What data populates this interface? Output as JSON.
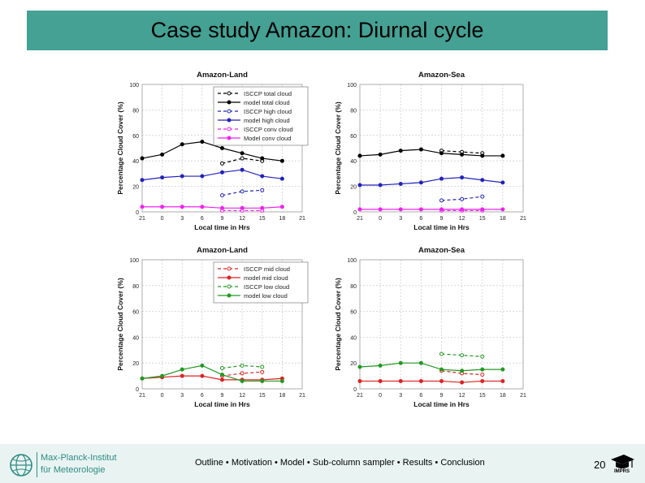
{
  "title": "Case study Amazon: Diurnal cycle",
  "footer": {
    "logo_line1": "Max-Planck-Institut",
    "logo_line2": "für Meteorologie",
    "nav": "Outline • Motivation • Model • Sub-column sampler • Results • Conclusion",
    "page": "20",
    "colors": {
      "bar": "#44a194",
      "footer_bg": "#e9f4f2",
      "logo": "#2e8b83"
    }
  },
  "chart_data": [
    {
      "type": "line",
      "title": "Amazon-Land",
      "xlabel": "Local time in Hrs",
      "ylabel": "Percentage Cloud Cover (%)",
      "x_ticks": [
        "21",
        "0",
        "3",
        "6",
        "9",
        "12",
        "15",
        "18",
        "21"
      ],
      "y_ticks": [
        "0",
        "20",
        "40",
        "60",
        "80",
        "100"
      ],
      "ylim": [
        0,
        100
      ],
      "legend": "top-right",
      "series": [
        {
          "name": "ISCCP total cloud",
          "color": "#000000",
          "dashed": true,
          "marker": "open",
          "x": [
            9,
            12,
            15
          ],
          "values": [
            38,
            42,
            40
          ]
        },
        {
          "name": "model total cloud",
          "color": "#000000",
          "dashed": false,
          "marker": "filled",
          "x": [
            -3,
            0,
            3,
            6,
            9,
            12,
            15,
            18
          ],
          "values": [
            42,
            45,
            53,
            55,
            50,
            46,
            42,
            40
          ]
        },
        {
          "name": "ISCCP high cloud",
          "color": "#2222bb",
          "dashed": true,
          "marker": "open",
          "x": [
            9,
            12,
            15
          ],
          "values": [
            13,
            16,
            17
          ]
        },
        {
          "name": "model high cloud",
          "color": "#2222bb",
          "dashed": false,
          "marker": "filled",
          "x": [
            -3,
            0,
            3,
            6,
            9,
            12,
            15,
            18
          ],
          "values": [
            25,
            27,
            28,
            28,
            31,
            33,
            28,
            26
          ]
        },
        {
          "name": "ISCCP conv cloud",
          "color": "#ee22ee",
          "dashed": true,
          "marker": "open",
          "x": [
            9,
            12,
            15
          ],
          "values": [
            1,
            1,
            1
          ]
        },
        {
          "name": "Model conv cloud",
          "color": "#ee22ee",
          "dashed": false,
          "marker": "filled",
          "x": [
            -3,
            0,
            3,
            6,
            9,
            12,
            15,
            18
          ],
          "values": [
            4,
            4,
            4,
            4,
            3,
            3,
            3,
            4
          ]
        }
      ]
    },
    {
      "type": "line",
      "title": "Amazon-Sea",
      "xlabel": "Local time in Hrs",
      "ylabel": "Percentage Cloud Cover (%)",
      "x_ticks": [
        "21",
        "0",
        "3",
        "6",
        "9",
        "12",
        "15",
        "18",
        "21"
      ],
      "y_ticks": [
        "0",
        "20",
        "40",
        "60",
        "80",
        "100"
      ],
      "ylim": [
        0,
        100
      ],
      "legend": "none",
      "series": [
        {
          "name": "ISCCP total cloud",
          "color": "#000000",
          "dashed": true,
          "marker": "open",
          "x": [
            9,
            12,
            15
          ],
          "values": [
            48,
            47,
            46
          ]
        },
        {
          "name": "model total cloud",
          "color": "#000000",
          "dashed": false,
          "marker": "filled",
          "x": [
            -3,
            0,
            3,
            6,
            9,
            12,
            15,
            18
          ],
          "values": [
            44,
            45,
            48,
            49,
            46,
            45,
            44,
            44
          ]
        },
        {
          "name": "ISCCP high cloud",
          "color": "#2222bb",
          "dashed": true,
          "marker": "open",
          "x": [
            9,
            12,
            15
          ],
          "values": [
            9,
            10,
            12
          ]
        },
        {
          "name": "model high cloud",
          "color": "#2222bb",
          "dashed": false,
          "marker": "filled",
          "x": [
            -3,
            0,
            3,
            6,
            9,
            12,
            15,
            18
          ],
          "values": [
            21,
            21,
            22,
            23,
            26,
            27,
            25,
            23
          ]
        },
        {
          "name": "ISCCP conv cloud",
          "color": "#ee22ee",
          "dashed": true,
          "marker": "open",
          "x": [
            9,
            12,
            15
          ],
          "values": [
            1,
            1,
            1
          ]
        },
        {
          "name": "Model conv cloud",
          "color": "#ee22ee",
          "dashed": false,
          "marker": "filled",
          "x": [
            -3,
            0,
            3,
            6,
            9,
            12,
            15,
            18
          ],
          "values": [
            2,
            2,
            2,
            2,
            2,
            2,
            2,
            2
          ]
        }
      ]
    },
    {
      "type": "line",
      "title": "Amazon-Land",
      "xlabel": "Local time in Hrs",
      "ylabel": "Percentage Cloud Cover (%)",
      "x_ticks": [
        "21",
        "0",
        "3",
        "6",
        "9",
        "12",
        "15",
        "18",
        "21"
      ],
      "y_ticks": [
        "0",
        "20",
        "40",
        "60",
        "80",
        "100"
      ],
      "ylim": [
        0,
        100
      ],
      "legend": "top-right",
      "series": [
        {
          "name": "ISCCP mid cloud",
          "color": "#dd2222",
          "dashed": true,
          "marker": "open",
          "x": [
            9,
            12,
            15
          ],
          "values": [
            10,
            12,
            13
          ]
        },
        {
          "name": "model mid cloud",
          "color": "#dd2222",
          "dashed": false,
          "marker": "filled",
          "x": [
            -3,
            0,
            3,
            6,
            9,
            12,
            15,
            18
          ],
          "values": [
            8,
            9,
            10,
            10,
            7,
            7,
            7,
            8
          ]
        },
        {
          "name": "ISCCP low cloud",
          "color": "#229922",
          "dashed": true,
          "marker": "open",
          "x": [
            9,
            12,
            15
          ],
          "values": [
            16,
            18,
            17
          ]
        },
        {
          "name": "model low cloud",
          "color": "#229922",
          "dashed": false,
          "marker": "filled",
          "x": [
            -3,
            0,
            3,
            6,
            9,
            12,
            15,
            18
          ],
          "values": [
            8,
            10,
            15,
            18,
            11,
            6,
            6,
            6
          ]
        }
      ]
    },
    {
      "type": "line",
      "title": "Amazon-Sea",
      "xlabel": "Local time in Hrs",
      "ylabel": "Percentage Cloud Cover (%)",
      "x_ticks": [
        "21",
        "0",
        "3",
        "6",
        "9",
        "12",
        "15",
        "18",
        "21"
      ],
      "y_ticks": [
        "0",
        "20",
        "40",
        "60",
        "80",
        "100"
      ],
      "ylim": [
        0,
        100
      ],
      "legend": "none",
      "series": [
        {
          "name": "ISCCP mid cloud",
          "color": "#dd2222",
          "dashed": true,
          "marker": "open",
          "x": [
            9,
            12,
            15
          ],
          "values": [
            14,
            12,
            11
          ]
        },
        {
          "name": "model mid cloud",
          "color": "#dd2222",
          "dashed": false,
          "marker": "filled",
          "x": [
            -3,
            0,
            3,
            6,
            9,
            12,
            15,
            18
          ],
          "values": [
            6,
            6,
            6,
            6,
            6,
            5,
            6,
            6
          ]
        },
        {
          "name": "ISCCP low cloud",
          "color": "#229922",
          "dashed": true,
          "marker": "open",
          "x": [
            9,
            12,
            15
          ],
          "values": [
            27,
            26,
            25
          ]
        },
        {
          "name": "model low cloud",
          "color": "#229922",
          "dashed": false,
          "marker": "filled",
          "x": [
            -3,
            0,
            3,
            6,
            9,
            12,
            15,
            18
          ],
          "values": [
            17,
            18,
            20,
            20,
            15,
            14,
            15,
            15
          ]
        }
      ]
    }
  ]
}
